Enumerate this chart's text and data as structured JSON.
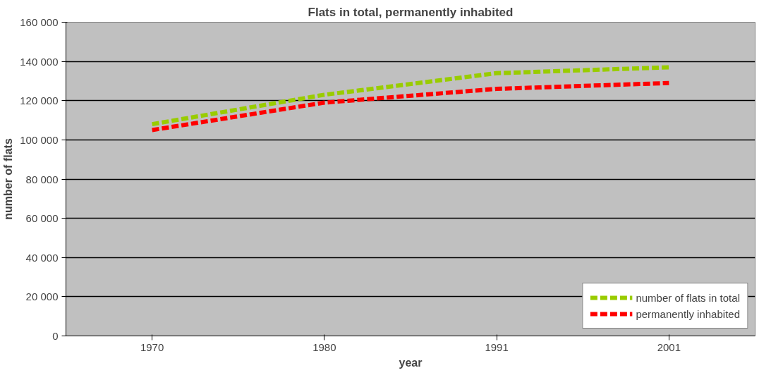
{
  "chart_data": {
    "type": "line",
    "title": "Flats in total, permanently inhabited",
    "xlabel": "year",
    "ylabel": "number of flats",
    "categories": [
      "1970",
      "1980",
      "1991",
      "2001"
    ],
    "series": [
      {
        "name": "number of flats in total",
        "color": "#99cc00",
        "values": [
          108000,
          123000,
          134000,
          137000
        ]
      },
      {
        "name": "permanently inhabited",
        "color": "#ff0000",
        "values": [
          105000,
          119000,
          126000,
          129000
        ]
      }
    ],
    "ylim": [
      0,
      160000
    ],
    "yticks": [
      {
        "value": 0,
        "label": "0"
      },
      {
        "value": 20000,
        "label": "20 000"
      },
      {
        "value": 40000,
        "label": "40 000"
      },
      {
        "value": 60000,
        "label": "60 000"
      },
      {
        "value": 80000,
        "label": "80 000"
      },
      {
        "value": 100000,
        "label": "100 000"
      },
      {
        "value": 120000,
        "label": "120 000"
      },
      {
        "value": 140000,
        "label": "140 000"
      },
      {
        "value": 160000,
        "label": "160 000"
      }
    ],
    "grid": "y",
    "legend": "bottom right",
    "line_style": "dashed",
    "marker": "none"
  }
}
